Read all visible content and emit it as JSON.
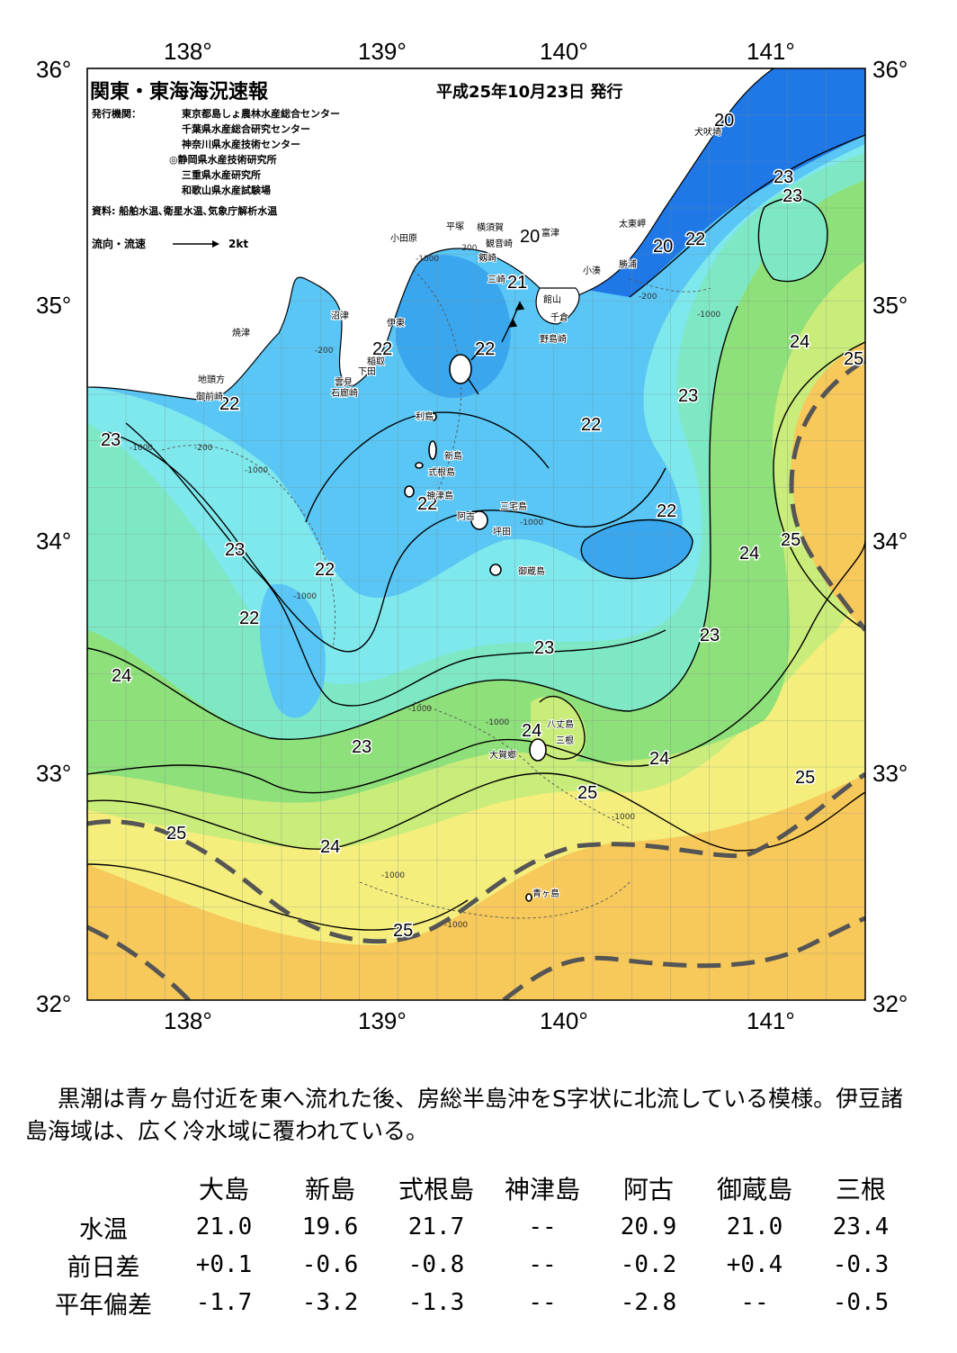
{
  "map": {
    "title": "関東・東海海況速報",
    "issue_date": "平成25年10月23日 発行",
    "publisher_key": "発行機関：",
    "publishers": [
      "東京都島しょ農林水産総合センター",
      "千葉県水産総合研究センター",
      "神奈川県水産技術センター",
      "◎静岡県水産技術研究所",
      "三重県水産研究所",
      "和歌山県水産試験場"
    ],
    "source": "資料: 船舶水温､衛星水温､気象庁解析水温",
    "legend_flow_label": "流向・流速",
    "legend_flow_value": "2kt",
    "lon_labels": [
      "138°",
      "139°",
      "140°",
      "141°"
    ],
    "lat_labels": [
      "36°",
      "35°",
      "34°",
      "33°",
      "32°"
    ],
    "contour_labels": [
      "20",
      "20",
      "20",
      "21",
      "22",
      "22",
      "22",
      "22",
      "22",
      "22",
      "22",
      "22",
      "22",
      "23",
      "23",
      "23",
      "23",
      "23",
      "23",
      "23",
      "23",
      "24",
      "24",
      "24",
      "24",
      "24",
      "24",
      "25",
      "25",
      "25",
      "25",
      "25",
      "25"
    ],
    "depth_labels": [
      "-200",
      "-1000"
    ],
    "place_names": [
      "犬吠埼",
      "太東岬",
      "勝浦",
      "小湊",
      "富津",
      "館山",
      "千倉",
      "野島崎",
      "横須賀",
      "観音崎",
      "剱崎",
      "三崎",
      "平塚",
      "小田原",
      "沼津",
      "伊東",
      "焼津",
      "稲取",
      "下田",
      "雲見",
      "石廊崎",
      "地頭方",
      "御前崎",
      "利島",
      "新島",
      "式根島",
      "神津島",
      "三宅島",
      "阿古",
      "坪田",
      "御蔵島",
      "八丈島",
      "三根",
      "大賀郷",
      "青ヶ島"
    ],
    "colors": {
      "water_cold": "#1f78e6",
      "water_cool": "#59c6f5",
      "water_mid": "#7ee8ec",
      "water_green": "#8ee07a",
      "water_warm": "#f5ee7c",
      "water_hot": "#f7c85a",
      "land": "#ffffff",
      "kuroshio_axis": "#555555"
    }
  },
  "summary": "黒潮は青ヶ島付近を東へ流れた後、房総半島沖をS字状に北流している模様。伊豆諸島海域は、広く冷水域に覆われている。",
  "table": {
    "columns": [
      "大島",
      "新島",
      "式根島",
      "神津島",
      "阿古",
      "御蔵島",
      "三根"
    ],
    "rows": [
      {
        "label": "水温",
        "values": [
          "21.0",
          "19.6",
          "21.7",
          "--",
          "20.9",
          "21.0",
          "23.4"
        ]
      },
      {
        "label": "前日差",
        "values": [
          "+0.1",
          "-0.6",
          "-0.8",
          "--",
          "-0.2",
          "+0.4",
          "-0.3"
        ]
      },
      {
        "label": "平年偏差",
        "values": [
          "-1.7",
          "-3.2",
          "-1.3",
          "--",
          "-2.8",
          "--",
          "-0.5"
        ]
      }
    ]
  }
}
